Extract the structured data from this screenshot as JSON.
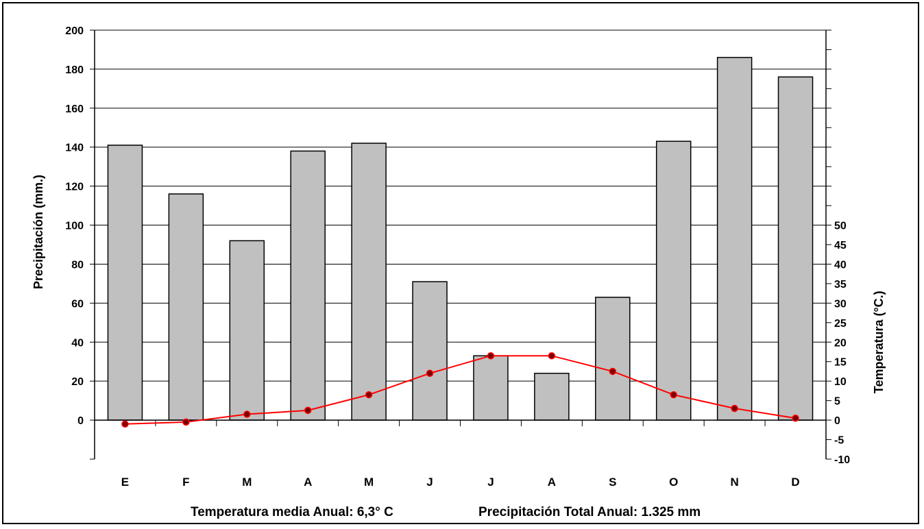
{
  "chart_data": {
    "type": "bar",
    "categories": [
      "E",
      "F",
      "M",
      "A",
      "M",
      "J",
      "J",
      "A",
      "S",
      "O",
      "N",
      "D"
    ],
    "series": [
      {
        "values": [
          141,
          116,
          92,
          138,
          142,
          71,
          33,
          24,
          63,
          143,
          186,
          176
        ],
        "axis": "left",
        "kind": "bar",
        "color": "#c0c0c0"
      },
      {
        "values": [
          -1,
          -0.5,
          1.5,
          2.5,
          6.5,
          12,
          16.5,
          16.5,
          12.5,
          6.5,
          3,
          0.5
        ],
        "axis": "right",
        "kind": "line",
        "color": "#ff0000"
      }
    ],
    "ylabel": "Precipitación (mm.)",
    "y2label": "Temperatura (°C.)",
    "ylim": [
      -20,
      200
    ],
    "y_ticks": [
      0,
      20,
      40,
      60,
      80,
      100,
      120,
      140,
      160,
      180,
      200
    ],
    "y2lim": [
      -10,
      100
    ],
    "y2_ticks": [
      -10,
      -5,
      0,
      5,
      10,
      15,
      20,
      25,
      30,
      35,
      40,
      45,
      50
    ],
    "grid": true,
    "legend": "none"
  },
  "footer": {
    "temp_text": "Temperatura media Anual:  6,3° C",
    "precip_text": "Precipitación Total Anual: 1.325 mm"
  }
}
